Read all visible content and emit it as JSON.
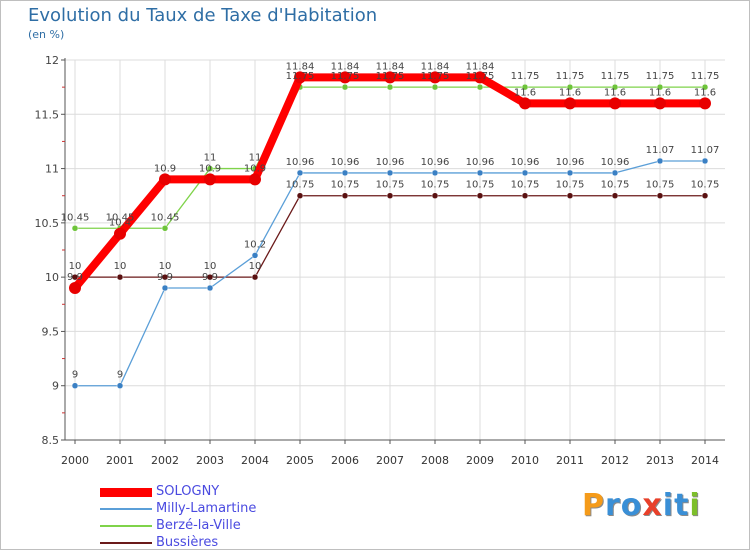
{
  "title": "Evolution du Taux de Taxe d'Habitation",
  "subtitle": "(en %)",
  "logo": [
    "P",
    "r",
    "o",
    "x",
    "i",
    "t",
    "i"
  ],
  "logo_colors": [
    "#f59b1a",
    "#3a8fd6",
    "#3a8fd6",
    "#e8402a",
    "#3a8fd6",
    "#3a8fd6",
    "#7dbf2a"
  ],
  "chart_data": {
    "type": "line",
    "title": "Evolution du Taux de Taxe d'Habitation",
    "ylabel": "(en %)",
    "xlabel": "",
    "categories": [
      "2000",
      "2001",
      "2002",
      "2003",
      "2004",
      "2005",
      "2006",
      "2007",
      "2008",
      "2009",
      "2010",
      "2011",
      "2012",
      "2013",
      "2014"
    ],
    "ylim": [
      8.5,
      12
    ],
    "yticks": [
      "8.5",
      "9",
      "9.5",
      "10",
      "10.5",
      "11",
      "11.5",
      "12"
    ],
    "series": [
      {
        "name": "Bussières",
        "color": "#6b1a1a",
        "pointColor": "#5a1010",
        "values": [
          10,
          10,
          10,
          10,
          10,
          10.75,
          10.75,
          10.75,
          10.75,
          10.75,
          10.75,
          10.75,
          10.75,
          10.75,
          10.75
        ],
        "labels": [
          "10",
          "10",
          "10",
          "10",
          "10",
          "10.75",
          "10.75",
          "10.75",
          "10.75",
          "10.75",
          "10.75",
          "10.75",
          "10.75",
          "10.75",
          "10.75"
        ]
      },
      {
        "name": "Berzé-la-Ville",
        "color": "#7fd34a",
        "pointColor": "#6ec43a",
        "values": [
          10.45,
          10.45,
          10.45,
          11,
          11,
          11.75,
          11.75,
          11.75,
          11.75,
          11.75,
          11.75,
          11.75,
          11.75,
          11.75,
          11.75
        ],
        "labels": [
          "10.45",
          "10.45",
          "10.45",
          "11",
          "11",
          "11.75",
          "11.75",
          "11.75",
          "11.75",
          "11.75",
          "11.75",
          "11.75",
          "11.75",
          "11.75",
          "11.75"
        ]
      },
      {
        "name": "Milly-Lamartine",
        "color": "#5b9fd8",
        "pointColor": "#3a80c4",
        "values": [
          9,
          9,
          9.9,
          9.9,
          10.2,
          10.96,
          10.96,
          10.96,
          10.96,
          10.96,
          10.96,
          10.96,
          10.96,
          11.07,
          11.07
        ],
        "labels": [
          "9",
          "9",
          "9.9",
          "9.9",
          "10.2",
          "10.96",
          "10.96",
          "10.96",
          "10.96",
          "10.96",
          "10.96",
          "10.96",
          "10.96",
          "11.07",
          "11.07"
        ]
      },
      {
        "name": "SOLOGNY",
        "color": "#ff0000",
        "pointColor": "#e80000",
        "values": [
          9.9,
          10.4,
          10.9,
          10.9,
          10.9,
          11.84,
          11.84,
          11.84,
          11.84,
          11.84,
          11.6,
          11.6,
          11.6,
          11.6,
          11.6
        ],
        "labels": [
          "9.9",
          "10.4",
          "10.9",
          "10.9",
          "10.9",
          "11.84",
          "11.84",
          "11.84",
          "11.84",
          "11.84",
          "11.6",
          "11.6",
          "11.6",
          "11.6",
          "11.6"
        ]
      }
    ],
    "legend": [
      "SOLOGNY",
      "Milly-Lamartine",
      "Berzé-la-Ville",
      "Bussières"
    ]
  }
}
